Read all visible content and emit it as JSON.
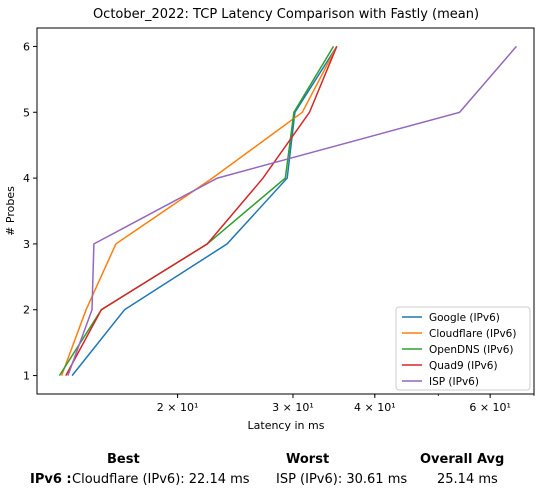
{
  "chart_data": {
    "type": "line",
    "title": "October_2022: TCP Latency Comparison with Fastly (mean)",
    "xlabel": "Latency in ms",
    "ylabel": "# Probes",
    "xscale": "log",
    "xlim": [
      12.2,
      70
    ],
    "ylim": [
      0.72,
      6.28
    ],
    "xticks": [
      {
        "value": 20,
        "label": "2 × 10¹"
      },
      {
        "value": 30,
        "label": "3 × 10¹"
      },
      {
        "value": 40,
        "label": "4 × 10¹"
      },
      {
        "value": 60,
        "label": "6 × 10¹"
      }
    ],
    "yticks": [
      1,
      2,
      3,
      4,
      5,
      6
    ],
    "legend_position": "bottom-right",
    "grid": false,
    "series": [
      {
        "name": "Google (IPv6)",
        "color": "#1f77b4",
        "x": [
          13.8,
          16.6,
          23.8,
          29.4,
          30.2,
          35.0
        ],
        "y": [
          1,
          2,
          3,
          4,
          5,
          6
        ]
      },
      {
        "name": "Cloudflare (IPv6)",
        "color": "#ff7f0e",
        "x": [
          13.3,
          14.5,
          16.1,
          22.6,
          31.0,
          35.0
        ],
        "y": [
          1,
          2,
          3,
          4,
          5,
          6
        ]
      },
      {
        "name": "OpenDNS (IPv6)",
        "color": "#2ca02c",
        "x": [
          13.2,
          15.3,
          22.2,
          29.2,
          30.1,
          34.6
        ],
        "y": [
          1,
          2,
          3,
          4,
          5,
          6
        ]
      },
      {
        "name": "Quad9 (IPv6)",
        "color": "#d62728",
        "x": [
          13.5,
          15.3,
          22.2,
          27.0,
          31.8,
          35.0
        ],
        "y": [
          1,
          2,
          3,
          4,
          5,
          6
        ]
      },
      {
        "name": "ISP (IPv6)",
        "color": "#9467bd",
        "x": [
          13.6,
          14.8,
          14.9,
          23.0,
          53.9,
          65.8
        ],
        "y": [
          1,
          2,
          3,
          4,
          5,
          6
        ]
      }
    ]
  },
  "summary": {
    "best_header": "Best",
    "worst_header": "Worst",
    "avg_header": "Overall Avg",
    "row_label": "IPv6 :",
    "best_value": "Cloudflare (IPv6): 22.14 ms",
    "worst_value": "ISP (IPv6): 30.61 ms",
    "avg_value": "25.14 ms"
  }
}
